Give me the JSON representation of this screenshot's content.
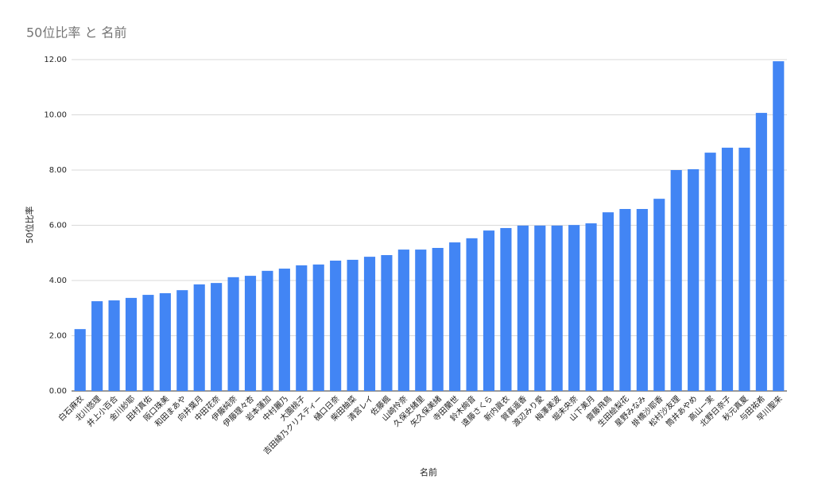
{
  "chart_data": {
    "type": "bar",
    "title": "50位比率 と 名前",
    "x_label": "名前",
    "y_label": "50位比率",
    "categories": [
      "白石麻衣",
      "北川悠理",
      "井上小百合",
      "金川紗耶",
      "田村真佑",
      "阪口珠美",
      "和田まあや",
      "向井葉月",
      "中田花奈",
      "伊藤純奈",
      "伊藤理々杏",
      "岩本蓮加",
      "中村麗乃",
      "大園桃子",
      "吉田綾乃クリスティー",
      "樋口日奈",
      "柴田柚菜",
      "清宮レイ",
      "佐藤楓",
      "山崎怜奈",
      "久保史緒里",
      "矢久保美緒",
      "寺田蘭世",
      "鈴木絢音",
      "遠藤さくら",
      "新内眞衣",
      "賀喜遥香",
      "渡辺みり愛",
      "梅澤美波",
      "堀未央奈",
      "山下美月",
      "齋藤飛鳥",
      "生田絵梨花",
      "星野みなみ",
      "掛橋沙耶香",
      "松村沙友理",
      "筒井あやめ",
      "高山一実",
      "北野日奈子",
      "秋元真夏",
      "与田祐希",
      "早川聖来"
    ],
    "values": [
      2.24,
      3.25,
      3.28,
      3.37,
      3.48,
      3.54,
      3.65,
      3.86,
      3.91,
      4.12,
      4.17,
      4.35,
      4.43,
      4.55,
      4.58,
      4.72,
      4.75,
      4.86,
      4.92,
      5.12,
      5.12,
      5.18,
      5.38,
      5.53,
      5.81,
      5.9,
      5.99,
      5.99,
      5.99,
      6.01,
      6.07,
      6.47,
      6.59,
      6.59,
      6.96,
      8.0,
      8.03,
      8.63,
      8.81,
      8.81,
      10.07,
      11.94
    ],
    "color": "#4285f4",
    "ylim": [
      0,
      12
    ],
    "yticks": [
      {
        "value": 0,
        "label": "0.00"
      },
      {
        "value": 2,
        "label": "2.00"
      },
      {
        "value": 4,
        "label": "4.00"
      },
      {
        "value": 6,
        "label": "6.00"
      },
      {
        "value": 8,
        "label": "8.00"
      },
      {
        "value": 10,
        "label": "10.00"
      },
      {
        "value": 12,
        "label": "12.00"
      }
    ],
    "grid": true
  }
}
